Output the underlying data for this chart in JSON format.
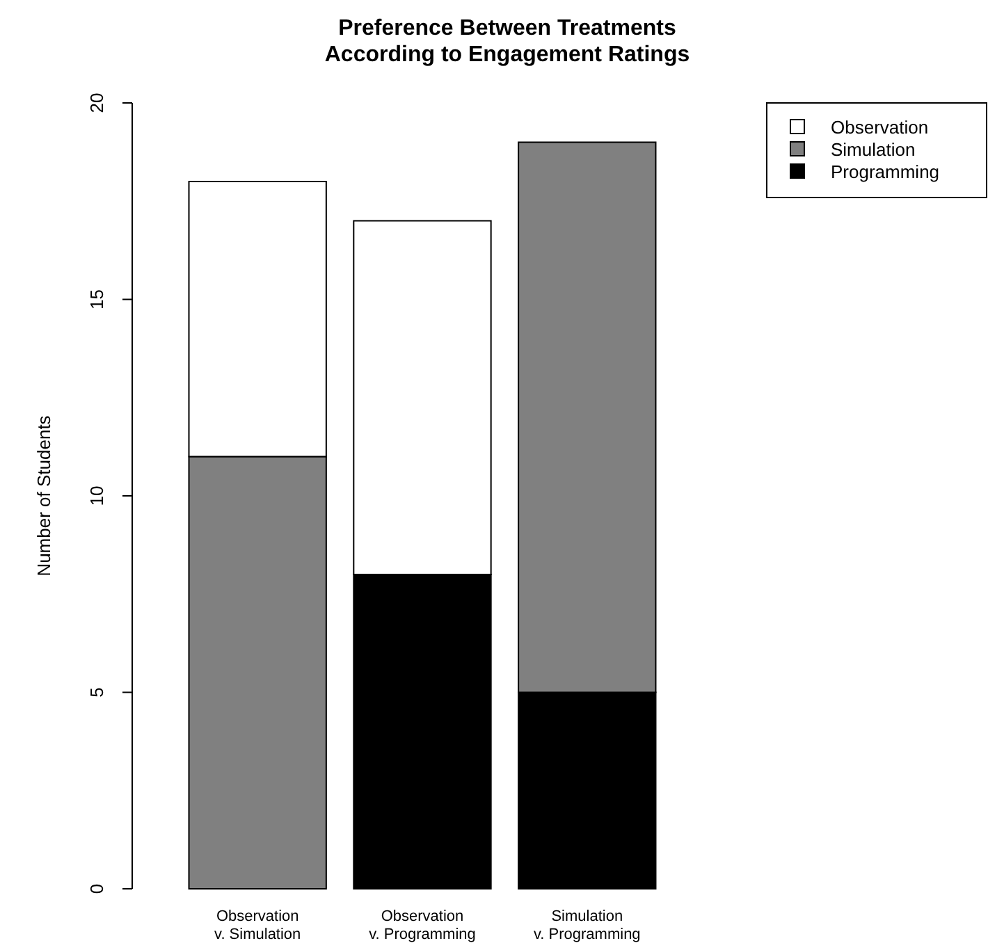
{
  "chart_data": {
    "type": "bar",
    "title": "Preference Between Treatments\nAccording to Engagement Ratings",
    "ylabel": "Number of Students",
    "categories": [
      "Observation\nv. Simulation",
      "Observation\nv. Programming",
      "Simulation\nv. Programming"
    ],
    "stacked": true,
    "ylim": [
      0,
      20
    ],
    "yticks": [
      0,
      5,
      10,
      15,
      20
    ],
    "legend": "top right",
    "grid": false,
    "series": [
      {
        "name": "Programming",
        "color": "#000000",
        "values": [
          0,
          8,
          5
        ]
      },
      {
        "name": "Simulation",
        "color": "#808080",
        "values": [
          11,
          0,
          14
        ]
      },
      {
        "name": "Observation",
        "color": "#ffffff",
        "values": [
          7,
          9,
          0
        ]
      }
    ]
  }
}
